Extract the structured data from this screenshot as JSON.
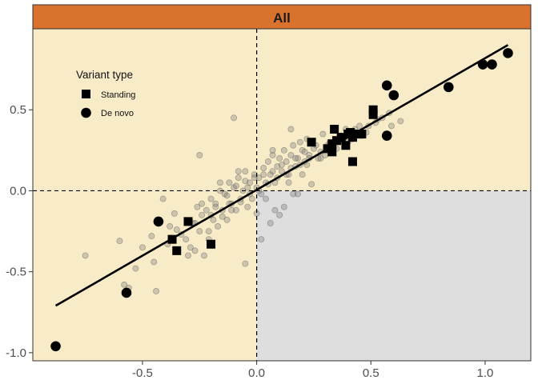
{
  "chart_data": {
    "type": "scatter",
    "panel_title": "All",
    "xlabel": "",
    "ylabel": "",
    "xlim": [
      -0.98,
      1.2
    ],
    "ylim": [
      -1.05,
      1.0
    ],
    "x_ticks": [
      -0.5,
      0.0,
      0.5,
      1.0
    ],
    "x_tick_labels": [
      "-0.5",
      "0.0",
      "0.5",
      "1.0"
    ],
    "y_ticks": [
      -1.0,
      -0.5,
      0.0,
      0.5
    ],
    "y_tick_labels": [
      "-1.0",
      "-0.5",
      "0.0",
      "0.5"
    ],
    "reference_lines": {
      "x": 0,
      "y": 0,
      "style": "dashed"
    },
    "fit_line": {
      "x": [
        -0.88,
        1.1
      ],
      "y": [
        -0.71,
        0.9
      ]
    },
    "shaded_quadrant": {
      "x": [
        0,
        1.2
      ],
      "y": [
        -1.05,
        0
      ],
      "color": "#dedede"
    },
    "colors": {
      "panel_background": "#f8ebc8",
      "strip": "#d9722c",
      "background_points": "#7a7a7a",
      "highlight": "#000000"
    },
    "legend": {
      "title": "Variant type",
      "position": "top-left",
      "entries": [
        {
          "label": "Standing",
          "shape": "square"
        },
        {
          "label": "De novo",
          "shape": "circle"
        }
      ]
    },
    "series": [
      {
        "name": "Standing",
        "marker": "square",
        "x": [
          -0.37,
          -0.35,
          -0.3,
          -0.2,
          0.24,
          0.31,
          0.33,
          0.34,
          0.35,
          0.33,
          0.37,
          0.4,
          0.39,
          0.42,
          0.41,
          0.44,
          0.46,
          0.51,
          0.51,
          0.42
        ],
        "y": [
          -0.3,
          -0.37,
          -0.19,
          -0.33,
          0.3,
          0.26,
          0.29,
          0.38,
          0.31,
          0.24,
          0.33,
          0.35,
          0.28,
          0.33,
          0.36,
          0.35,
          0.35,
          0.5,
          0.47,
          0.18
        ]
      },
      {
        "name": "De novo",
        "marker": "circle",
        "x": [
          -0.88,
          -0.57,
          -0.43,
          0.57,
          0.57,
          0.6,
          0.84,
          0.99,
          1.03,
          1.1
        ],
        "y": [
          -0.96,
          -0.63,
          -0.19,
          0.65,
          0.34,
          0.59,
          0.64,
          0.78,
          0.78,
          0.85
        ]
      },
      {
        "name": "",
        "marker": "circle",
        "x": [
          -0.75,
          -0.6,
          -0.56,
          -0.53,
          -0.5,
          -0.46,
          -0.44,
          -0.41,
          -0.38,
          -0.36,
          -0.33,
          -0.31,
          -0.29,
          -0.28,
          -0.27,
          -0.26,
          -0.25,
          -0.24,
          -0.23,
          -0.22,
          -0.21,
          -0.2,
          -0.19,
          -0.18,
          -0.17,
          -0.16,
          -0.15,
          -0.14,
          -0.13,
          -0.12,
          -0.11,
          -0.1,
          -0.09,
          -0.08,
          -0.07,
          -0.06,
          -0.05,
          -0.04,
          -0.03,
          -0.02,
          -0.01,
          0.0,
          0.01,
          0.02,
          0.03,
          0.04,
          0.05,
          0.06,
          0.07,
          0.08,
          0.09,
          0.1,
          0.11,
          0.12,
          0.13,
          0.14,
          0.15,
          0.16,
          0.17,
          0.18,
          0.19,
          0.2,
          0.21,
          0.22,
          0.23,
          0.25,
          0.27,
          0.29,
          0.31,
          0.33,
          0.36,
          0.39,
          0.42,
          0.45,
          0.48,
          0.52,
          0.55,
          0.59,
          0.63,
          -0.58,
          -0.45,
          -0.39,
          -0.35,
          -0.3,
          -0.27,
          -0.24,
          -0.21,
          -0.18,
          -0.15,
          -0.13,
          -0.11,
          -0.09,
          -0.07,
          -0.05,
          -0.03,
          -0.01,
          0.01,
          0.03,
          0.05,
          0.07,
          0.09,
          0.11,
          0.13,
          0.15,
          0.17,
          0.19,
          0.21,
          0.23,
          0.26,
          0.28,
          0.3,
          0.32,
          0.35,
          0.37,
          0.4,
          0.43,
          0.46,
          0.49,
          0.53,
          0.58,
          -0.2,
          -0.16,
          -0.12,
          -0.08,
          -0.04,
          0.0,
          0.04,
          0.08,
          0.12,
          0.16,
          0.2,
          0.24,
          0.28,
          -0.05,
          0.02,
          0.06,
          0.1,
          0.14,
          0.18,
          -0.25,
          -0.1,
          0.07,
          0.15,
          0.22
        ],
        "y": [
          -0.4,
          -0.31,
          -0.6,
          -0.48,
          -0.35,
          -0.28,
          -0.62,
          -0.05,
          -0.22,
          -0.14,
          -0.27,
          -0.3,
          -0.35,
          -0.2,
          -0.37,
          -0.1,
          -0.25,
          -0.15,
          -0.4,
          -0.12,
          -0.3,
          -0.05,
          -0.18,
          -0.08,
          -0.22,
          0.0,
          -0.12,
          -0.02,
          -0.18,
          0.05,
          -0.08,
          0.02,
          -0.12,
          0.08,
          -0.05,
          0.0,
          0.12,
          -0.1,
          0.05,
          -0.05,
          0.1,
          0.02,
          0.08,
          -0.02,
          0.14,
          0.05,
          0.18,
          0.1,
          0.22,
          0.05,
          0.15,
          0.2,
          0.12,
          0.25,
          0.18,
          0.1,
          0.22,
          0.28,
          0.15,
          0.2,
          0.3,
          0.25,
          0.18,
          0.32,
          0.22,
          0.26,
          0.2,
          0.35,
          0.28,
          0.24,
          0.3,
          0.38,
          0.32,
          0.4,
          0.36,
          0.42,
          0.45,
          0.4,
          0.43,
          -0.58,
          -0.44,
          -0.33,
          -0.24,
          -0.4,
          -0.2,
          -0.08,
          -0.25,
          -0.1,
          -0.16,
          -0.03,
          -0.12,
          0.03,
          -0.07,
          0.06,
          -0.02,
          0.08,
          0.0,
          0.1,
          0.04,
          0.12,
          0.08,
          0.16,
          0.1,
          0.14,
          0.2,
          0.16,
          0.24,
          0.2,
          0.28,
          0.24,
          0.22,
          0.3,
          0.26,
          0.34,
          0.3,
          0.38,
          0.34,
          0.4,
          0.44,
          0.48,
          -0.15,
          0.05,
          -0.08,
          0.12,
          0.02,
          -0.14,
          -0.05,
          -0.12,
          -0.1,
          -0.02,
          0.1,
          0.04,
          0.2,
          -0.45,
          -0.3,
          -0.2,
          -0.15,
          0.05,
          -0.02,
          0.22,
          0.45,
          0.25,
          0.38,
          0.16
        ]
      }
    ]
  }
}
